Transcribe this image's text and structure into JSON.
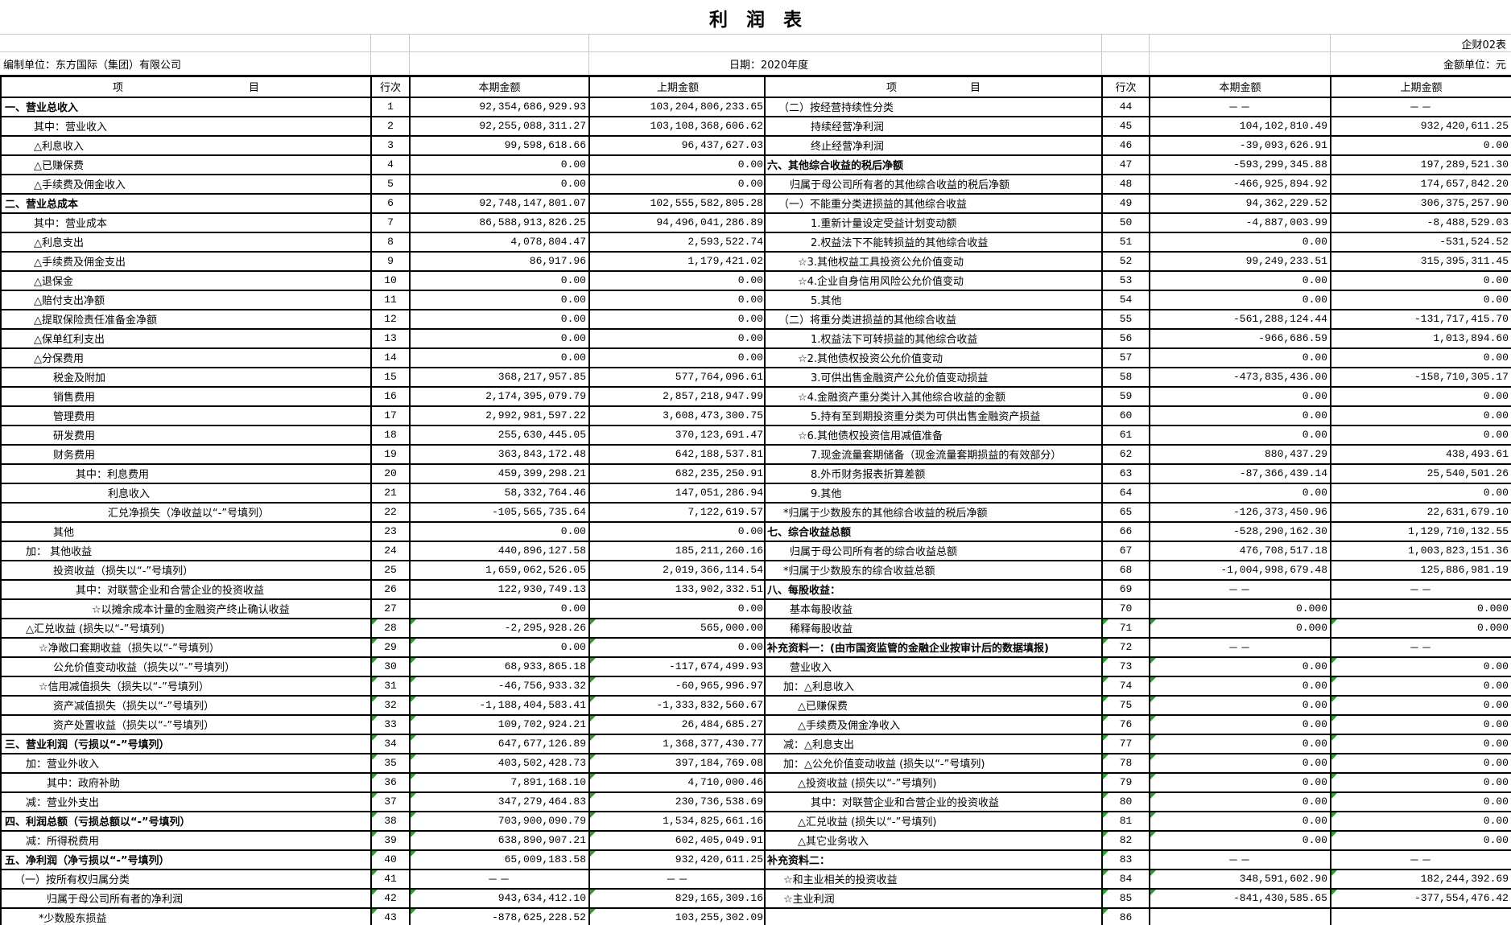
{
  "meta": {
    "title": "利　润　表",
    "form_code": "企财02表",
    "prepared_by": "编制单位：东方国际（集团）有限公司",
    "date_label": "日期：2020年度",
    "unit_label": "金额单位：元",
    "triangle_color": "#2f9e2f"
  },
  "headers": {
    "item_left": "项　　　　　　　　　　　　目",
    "item_right": "项　　　　　　　目",
    "line": "行次",
    "current": "本期金额",
    "prior": "上期金额"
  },
  "left_rows": [
    {
      "n": "1",
      "label": "一、营业总收入",
      "ind": 4,
      "b": 1,
      "cur": "92,354,686,929.93",
      "prev": "103,204,806,233.65",
      "t": 0
    },
    {
      "n": "2",
      "label": "其中：营业收入",
      "ind": 40,
      "b": 0,
      "cur": "92,255,088,311.27",
      "prev": "103,108,368,606.62",
      "t": 0
    },
    {
      "n": "3",
      "label": "△利息收入",
      "ind": 40,
      "b": 0,
      "cur": "99,598,618.66",
      "prev": "96,437,627.03",
      "t": 0
    },
    {
      "n": "4",
      "label": "△已赚保费",
      "ind": 40,
      "b": 0,
      "cur": "0.00",
      "prev": "0.00",
      "t": 0
    },
    {
      "n": "5",
      "label": "△手续费及佣金收入",
      "ind": 40,
      "b": 0,
      "cur": "0.00",
      "prev": "0.00",
      "t": 0
    },
    {
      "n": "6",
      "label": "二、营业总成本",
      "ind": 4,
      "b": 1,
      "cur": "92,748,147,801.07",
      "prev": "102,555,582,805.28",
      "t": 0
    },
    {
      "n": "7",
      "label": "其中：营业成本",
      "ind": 40,
      "b": 0,
      "cur": "86,588,913,826.25",
      "prev": "94,496,041,286.89",
      "t": 0
    },
    {
      "n": "8",
      "label": "△利息支出",
      "ind": 40,
      "b": 0,
      "cur": "4,078,804.47",
      "prev": "2,593,522.74",
      "t": 0
    },
    {
      "n": "9",
      "label": "△手续费及佣金支出",
      "ind": 40,
      "b": 0,
      "cur": "86,917.96",
      "prev": "1,179,421.02",
      "t": 0
    },
    {
      "n": "10",
      "label": "△退保金",
      "ind": 40,
      "b": 0,
      "cur": "0.00",
      "prev": "0.00",
      "t": 0
    },
    {
      "n": "11",
      "label": "△赔付支出净额",
      "ind": 40,
      "b": 0,
      "cur": "0.00",
      "prev": "0.00",
      "t": 0
    },
    {
      "n": "12",
      "label": "△提取保险责任准备金净额",
      "ind": 40,
      "b": 0,
      "cur": "0.00",
      "prev": "0.00",
      "t": 0
    },
    {
      "n": "13",
      "label": "△保单红利支出",
      "ind": 40,
      "b": 0,
      "cur": "0.00",
      "prev": "0.00",
      "t": 0
    },
    {
      "n": "14",
      "label": "△分保费用",
      "ind": 40,
      "b": 0,
      "cur": "0.00",
      "prev": "0.00",
      "t": 0
    },
    {
      "n": "15",
      "label": "税金及附加",
      "ind": 64,
      "b": 0,
      "cur": "368,217,957.85",
      "prev": "577,764,096.61",
      "t": 0
    },
    {
      "n": "16",
      "label": "销售费用",
      "ind": 64,
      "b": 0,
      "cur": "2,174,395,079.79",
      "prev": "2,857,218,947.99",
      "t": 0
    },
    {
      "n": "17",
      "label": "管理费用",
      "ind": 64,
      "b": 0,
      "cur": "2,992,981,597.22",
      "prev": "3,608,473,300.75",
      "t": 0
    },
    {
      "n": "18",
      "label": "研发费用",
      "ind": 64,
      "b": 0,
      "cur": "255,630,445.05",
      "prev": "370,123,691.47",
      "t": 0
    },
    {
      "n": "19",
      "label": "财务费用",
      "ind": 64,
      "b": 0,
      "cur": "363,843,172.48",
      "prev": "642,188,537.81",
      "t": 0
    },
    {
      "n": "20",
      "label": "其中：利息费用",
      "ind": 92,
      "b": 0,
      "cur": "459,399,298.21",
      "prev": "682,235,250.91",
      "t": 0
    },
    {
      "n": "21",
      "label": "利息收入",
      "ind": 132,
      "b": 0,
      "cur": "58,332,764.46",
      "prev": "147,051,286.94",
      "t": 0
    },
    {
      "n": "22",
      "label": "汇兑净损失（净收益以“-”号填列）",
      "ind": 132,
      "b": 0,
      "cur": "-105,565,735.64",
      "prev": "7,122,619.57",
      "t": 0
    },
    {
      "n": "23",
      "label": "其他",
      "ind": 64,
      "b": 0,
      "cur": "0.00",
      "prev": "0.00",
      "t": 0
    },
    {
      "n": "24",
      "label": "加： 其他收益",
      "ind": 30,
      "b": 0,
      "cur": "440,896,127.58",
      "prev": "185,211,260.16",
      "t": 0
    },
    {
      "n": "25",
      "label": "投资收益（损失以“-”号填列）",
      "ind": 64,
      "b": 0,
      "cur": "1,659,062,526.05",
      "prev": "2,019,366,114.54",
      "t": 0
    },
    {
      "n": "26",
      "label": "其中：对联营企业和合营企业的投资收益",
      "ind": 92,
      "b": 0,
      "cur": "122,930,749.13",
      "prev": "133,902,332.51",
      "t": 0
    },
    {
      "n": "27",
      "label": "☆以摊余成本计量的金融资产终止确认收益",
      "ind": 112,
      "b": 0,
      "cur": "0.00",
      "prev": "0.00",
      "t": 0
    },
    {
      "n": "28",
      "label": "△汇兑收益 (损失以“-”号填列)",
      "ind": 30,
      "b": 0,
      "cur": "-2,295,928.26",
      "prev": "565,000.00",
      "t": 2
    },
    {
      "n": "29",
      "label": "☆净敞口套期收益（损失以“-”号填列）",
      "ind": 46,
      "b": 0,
      "cur": "0.00",
      "prev": "0.00",
      "t": 2
    },
    {
      "n": "30",
      "label": "公允价值变动收益（损失以“-”号填列）",
      "ind": 64,
      "b": 0,
      "cur": "68,933,865.18",
      "prev": "-117,674,499.93",
      "t": 2
    },
    {
      "n": "31",
      "label": "☆信用减值损失（损失以“-”号填列）",
      "ind": 46,
      "b": 0,
      "cur": "-46,756,933.32",
      "prev": "-60,965,996.97",
      "t": 2
    },
    {
      "n": "32",
      "label": "资产减值损失（损失以“-”号填列）",
      "ind": 64,
      "b": 0,
      "cur": "-1,188,404,583.41",
      "prev": "-1,333,832,560.67",
      "t": 2
    },
    {
      "n": "33",
      "label": "资产处置收益（损失以“-”号填列）",
      "ind": 64,
      "b": 0,
      "cur": "109,702,924.21",
      "prev": "26,484,685.27",
      "t": 2
    },
    {
      "n": "34",
      "label": "三、营业利润（亏损以“-”号填列）",
      "ind": 4,
      "b": 1,
      "cur": "647,677,126.89",
      "prev": "1,368,377,430.77",
      "t": 2
    },
    {
      "n": "35",
      "label": "加：营业外收入",
      "ind": 30,
      "b": 0,
      "cur": "403,502,428.73",
      "prev": "397,184,769.08",
      "t": 2
    },
    {
      "n": "36",
      "label": "其中：政府补助",
      "ind": 56,
      "b": 0,
      "cur": "7,891,168.10",
      "prev": "4,710,000.46",
      "t": 2
    },
    {
      "n": "37",
      "label": "减：营业外支出",
      "ind": 30,
      "b": 0,
      "cur": "347,279,464.83",
      "prev": "230,736,538.69",
      "t": 2
    },
    {
      "n": "38",
      "label": "四、利润总额（亏损总额以“-”号填列）",
      "ind": 4,
      "b": 1,
      "cur": "703,900,090.79",
      "prev": "1,534,825,661.16",
      "t": 2
    },
    {
      "n": "39",
      "label": "减：所得税费用",
      "ind": 30,
      "b": 0,
      "cur": "638,890,907.21",
      "prev": "602,405,049.91",
      "t": 2
    },
    {
      "n": "40",
      "label": "五、净利润（净亏损以“-”号填列）",
      "ind": 4,
      "b": 1,
      "cur": "65,009,183.58",
      "prev": "932,420,611.25",
      "t": 2
    },
    {
      "n": "41",
      "label": "（一）按所有权归属分类",
      "ind": 16,
      "b": 0,
      "cur": "－－",
      "prev": "－－",
      "t": 1
    },
    {
      "n": "42",
      "label": "归属于母公司所有者的净利润",
      "ind": 56,
      "b": 0,
      "cur": "943,634,412.10",
      "prev": "829,165,309.16",
      "t": 2
    },
    {
      "n": "43",
      "label": "*少数股东损益",
      "ind": 46,
      "b": 0,
      "cur": "-878,625,228.52",
      "prev": "103,255,302.09",
      "t": 2
    }
  ],
  "right_rows": [
    {
      "n": "44",
      "label": "（二）按经营持续性分类",
      "ind": 16,
      "b": 0,
      "cur": "－－",
      "prev": "－－",
      "t": 0
    },
    {
      "n": "45",
      "label": "持续经营净利润",
      "ind": 56,
      "b": 0,
      "cur": "104,102,810.49",
      "prev": "932,420,611.25",
      "t": 0
    },
    {
      "n": "46",
      "label": "终止经营净利润",
      "ind": 56,
      "b": 0,
      "cur": "-39,093,626.91",
      "prev": "0.00",
      "t": 0
    },
    {
      "n": "47",
      "label": "六、其他综合收益的税后净额",
      "ind": 2,
      "b": 1,
      "cur": "-593,299,345.88",
      "prev": "197,289,521.30",
      "t": 0
    },
    {
      "n": "48",
      "label": "归属于母公司所有者的其他综合收益的税后净额",
      "ind": 30,
      "b": 0,
      "cur": "-466,925,894.92",
      "prev": "174,657,842.20",
      "t": 0
    },
    {
      "n": "49",
      "label": "（一）不能重分类进损益的其他综合收益",
      "ind": 16,
      "b": 0,
      "cur": "94,362,229.52",
      "prev": "306,375,257.90",
      "t": 0
    },
    {
      "n": "50",
      "label": "1.重新计量设定受益计划变动额",
      "ind": 56,
      "b": 0,
      "cur": "-4,887,003.99",
      "prev": "-8,488,529.03",
      "t": 0
    },
    {
      "n": "51",
      "label": "2.权益法下不能转损益的其他综合收益",
      "ind": 56,
      "b": 0,
      "cur": "0.00",
      "prev": "-531,524.52",
      "t": 0
    },
    {
      "n": "52",
      "label": "☆3.其他权益工具投资公允价值变动",
      "ind": 40,
      "b": 0,
      "cur": "99,249,233.51",
      "prev": "315,395,311.45",
      "t": 0
    },
    {
      "n": "53",
      "label": "☆4.企业自身信用风险公允价值变动",
      "ind": 40,
      "b": 0,
      "cur": "0.00",
      "prev": "0.00",
      "t": 0
    },
    {
      "n": "54",
      "label": "5.其他",
      "ind": 56,
      "b": 0,
      "cur": "0.00",
      "prev": "0.00",
      "t": 0
    },
    {
      "n": "55",
      "label": "（二）将重分类进损益的其他综合收益",
      "ind": 16,
      "b": 0,
      "cur": "-561,288,124.44",
      "prev": "-131,717,415.70",
      "t": 0
    },
    {
      "n": "56",
      "label": "1.权益法下可转损益的其他综合收益",
      "ind": 56,
      "b": 0,
      "cur": "-966,686.59",
      "prev": "1,013,894.60",
      "t": 0
    },
    {
      "n": "57",
      "label": "☆2.其他债权投资公允价值变动",
      "ind": 40,
      "b": 0,
      "cur": "0.00",
      "prev": "0.00",
      "t": 0
    },
    {
      "n": "58",
      "label": "3.可供出售金融资产公允价值变动损益",
      "ind": 56,
      "b": 0,
      "cur": "-473,835,436.00",
      "prev": "-158,710,305.17",
      "t": 0
    },
    {
      "n": "59",
      "label": "☆4.金融资产重分类计入其他综合收益的金额",
      "ind": 40,
      "b": 0,
      "cur": "0.00",
      "prev": "0.00",
      "t": 0
    },
    {
      "n": "60",
      "label": "5.持有至到期投资重分类为可供出售金融资产损益",
      "ind": 56,
      "b": 0,
      "cur": "0.00",
      "prev": "0.00",
      "t": 0
    },
    {
      "n": "61",
      "label": "☆6.其他债权投资信用减值准备",
      "ind": 40,
      "b": 0,
      "cur": "0.00",
      "prev": "0.00",
      "t": 0
    },
    {
      "n": "62",
      "label": "7.现金流量套期储备（现金流量套期损益的有效部分）",
      "ind": 56,
      "b": 0,
      "cur": "880,437.29",
      "prev": "438,493.61",
      "t": 0
    },
    {
      "n": "63",
      "label": "8.外币财务报表折算差额",
      "ind": 56,
      "b": 0,
      "cur": "-87,366,439.14",
      "prev": "25,540,501.26",
      "t": 0
    },
    {
      "n": "64",
      "label": "9.其他",
      "ind": 56,
      "b": 0,
      "cur": "0.00",
      "prev": "0.00",
      "t": 0
    },
    {
      "n": "65",
      "label": "*归属于少数股东的其他综合收益的税后净额",
      "ind": 22,
      "b": 0,
      "cur": "-126,373,450.96",
      "prev": "22,631,679.10",
      "t": 0
    },
    {
      "n": "66",
      "label": "七、综合收益总额",
      "ind": 2,
      "b": 1,
      "cur": "-528,290,162.30",
      "prev": "1,129,710,132.55",
      "t": 0
    },
    {
      "n": "67",
      "label": "归属于母公司所有者的综合收益总额",
      "ind": 30,
      "b": 0,
      "cur": "476,708,517.18",
      "prev": "1,003,823,151.36",
      "t": 0
    },
    {
      "n": "68",
      "label": "*归属于少数股东的综合收益总额",
      "ind": 22,
      "b": 0,
      "cur": "-1,004,998,679.48",
      "prev": "125,886,981.19",
      "t": 0
    },
    {
      "n": "69",
      "label": "八、每股收益：",
      "ind": 2,
      "b": 1,
      "cur": "－－",
      "prev": "－－",
      "t": 0
    },
    {
      "n": "70",
      "label": "基本每股收益",
      "ind": 30,
      "b": 0,
      "cur": "0.000",
      "prev": "0.000",
      "t": 0
    },
    {
      "n": "71",
      "label": "稀释每股收益",
      "ind": 30,
      "b": 0,
      "cur": "0.000",
      "prev": "0.000",
      "t": 2
    },
    {
      "n": "72",
      "label": "补充资料一：(由市国资监管的金融企业按审计后的数据填报)",
      "ind": 2,
      "b": 1,
      "cur": "－－",
      "prev": "－－",
      "t": 1
    },
    {
      "n": "73",
      "label": "营业收入",
      "ind": 30,
      "b": 0,
      "cur": "0.00",
      "prev": "0.00",
      "t": 2
    },
    {
      "n": "74",
      "label": "加：△利息收入",
      "ind": 22,
      "b": 0,
      "cur": "0.00",
      "prev": "0.00",
      "t": 2
    },
    {
      "n": "75",
      "label": "△已赚保费",
      "ind": 40,
      "b": 0,
      "cur": "0.00",
      "prev": "0.00",
      "t": 2
    },
    {
      "n": "76",
      "label": "△手续费及佣金净收入",
      "ind": 40,
      "b": 0,
      "cur": "0.00",
      "prev": "0.00",
      "t": 2
    },
    {
      "n": "77",
      "label": "减：△利息支出",
      "ind": 22,
      "b": 0,
      "cur": "0.00",
      "prev": "0.00",
      "t": 2
    },
    {
      "n": "78",
      "label": "加：△公允价值变动收益 (损失以“-”号填列)",
      "ind": 22,
      "b": 0,
      "cur": "0.00",
      "prev": "0.00",
      "t": 2
    },
    {
      "n": "79",
      "label": "△投资收益 (损失以“-”号填列)",
      "ind": 40,
      "b": 0,
      "cur": "0.00",
      "prev": "0.00",
      "t": 2
    },
    {
      "n": "80",
      "label": "其中：对联营企业和合营企业的投资收益",
      "ind": 56,
      "b": 0,
      "cur": "0.00",
      "prev": "0.00",
      "t": 2
    },
    {
      "n": "81",
      "label": "△汇兑收益 (损失以“-”号填列)",
      "ind": 40,
      "b": 0,
      "cur": "0.00",
      "prev": "0.00",
      "t": 2
    },
    {
      "n": "82",
      "label": "△其它业务收入",
      "ind": 40,
      "b": 0,
      "cur": "0.00",
      "prev": "0.00",
      "t": 2
    },
    {
      "n": "83",
      "label": "补充资料二：",
      "ind": 2,
      "b": 1,
      "cur": "－－",
      "prev": "－－",
      "t": 1
    },
    {
      "n": "84",
      "label": "☆和主业相关的投资收益",
      "ind": 22,
      "b": 0,
      "cur": "348,591,602.90",
      "prev": "182,244,392.69",
      "t": 2
    },
    {
      "n": "85",
      "label": "☆主业利润",
      "ind": 22,
      "b": 0,
      "cur": "-841,430,585.65",
      "prev": "-377,554,476.42",
      "t": 2
    },
    {
      "n": "86",
      "label": "",
      "ind": 2,
      "b": 0,
      "cur": "",
      "prev": "",
      "t": 1
    }
  ]
}
